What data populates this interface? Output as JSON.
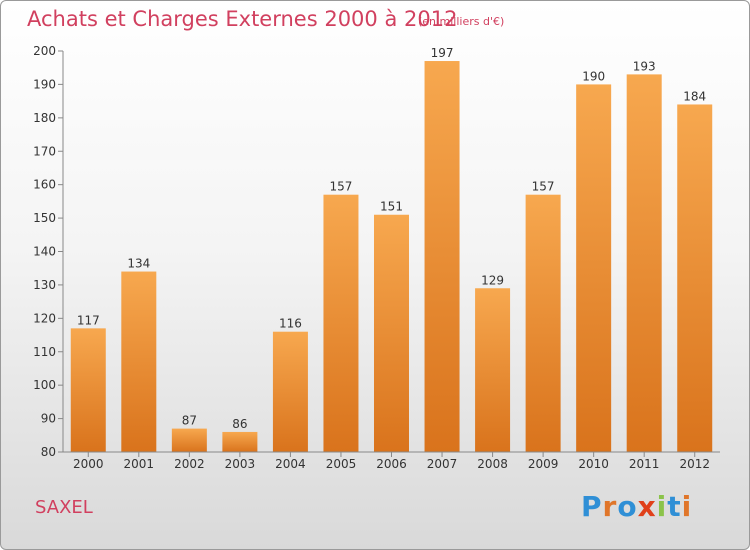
{
  "header": {
    "title": "Achats et Charges Externes 2000 à 2012",
    "subtitle": "(en milliers d'€)"
  },
  "footer": {
    "commune": "SAXEL",
    "logo_text": "Proxiti"
  },
  "colors": {
    "bar_top": "#f7a84f",
    "bar_bottom": "#d9731c",
    "title": "#d1405f",
    "logo": [
      "#2f8fd6",
      "#e0762a",
      "#2f8fd6",
      "#e0401a",
      "#8bc34a",
      "#2f8fd6",
      "#e0762a"
    ]
  },
  "chart_data": {
    "type": "bar",
    "title": "Achats et Charges Externes 2000 à 2012",
    "subtitle": "(en milliers d'€)",
    "categories": [
      "2000",
      "2001",
      "2002",
      "2003",
      "2004",
      "2005",
      "2006",
      "2007",
      "2008",
      "2009",
      "2010",
      "2011",
      "2012"
    ],
    "values": [
      117,
      134,
      87,
      86,
      116,
      157,
      151,
      197,
      129,
      157,
      190,
      193,
      184
    ],
    "xlabel": "",
    "ylabel": "",
    "ylim": [
      80,
      200
    ],
    "yticks": [
      80,
      90,
      100,
      110,
      120,
      130,
      140,
      150,
      160,
      170,
      180,
      190,
      200
    ],
    "grid": false,
    "legend": "none"
  }
}
